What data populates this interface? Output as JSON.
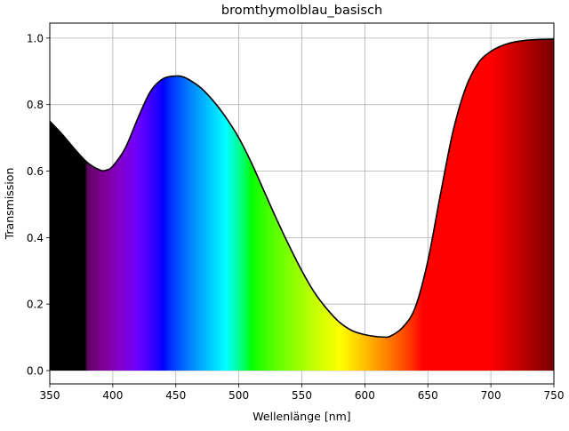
{
  "chart_data": {
    "type": "area",
    "title": "bromthymolblau_basisch",
    "xlabel": "Wellenlänge [nm]",
    "ylabel": "Transmission",
    "xlim": [
      350,
      750
    ],
    "ylim": [
      -0.04,
      1.045
    ],
    "xticks": [
      350,
      400,
      450,
      500,
      550,
      600,
      650,
      700,
      750
    ],
    "xtick_labels": [
      "350",
      "400",
      "450",
      "500",
      "550",
      "600",
      "650",
      "700",
      "750"
    ],
    "yticks": [
      0.0,
      0.2,
      0.4,
      0.6,
      0.8,
      1.0
    ],
    "ytick_labels": [
      "0.0",
      "0.2",
      "0.4",
      "0.6",
      "0.8",
      "1.0"
    ],
    "grid": true,
    "legend": "none",
    "fill": "visible-spectrum-gradient",
    "line_color": "#000000",
    "series": [
      {
        "x": [
          350,
          360,
          370,
          380,
          390,
          395,
          400,
          410,
          420,
          430,
          440,
          450,
          455,
          460,
          470,
          480,
          490,
          500,
          510,
          520,
          530,
          540,
          550,
          560,
          570,
          580,
          590,
          600,
          610,
          615,
          620,
          630,
          640,
          650,
          660,
          670,
          680,
          690,
          700,
          710,
          720,
          730,
          740,
          750
        ],
        "y": [
          0.75,
          0.71,
          0.665,
          0.625,
          0.603,
          0.603,
          0.615,
          0.67,
          0.76,
          0.84,
          0.878,
          0.886,
          0.884,
          0.876,
          0.85,
          0.81,
          0.76,
          0.7,
          0.625,
          0.54,
          0.455,
          0.375,
          0.3,
          0.235,
          0.185,
          0.145,
          0.12,
          0.108,
          0.102,
          0.101,
          0.103,
          0.13,
          0.19,
          0.33,
          0.53,
          0.72,
          0.85,
          0.925,
          0.96,
          0.979,
          0.989,
          0.994,
          0.996,
          0.997
        ]
      }
    ]
  }
}
